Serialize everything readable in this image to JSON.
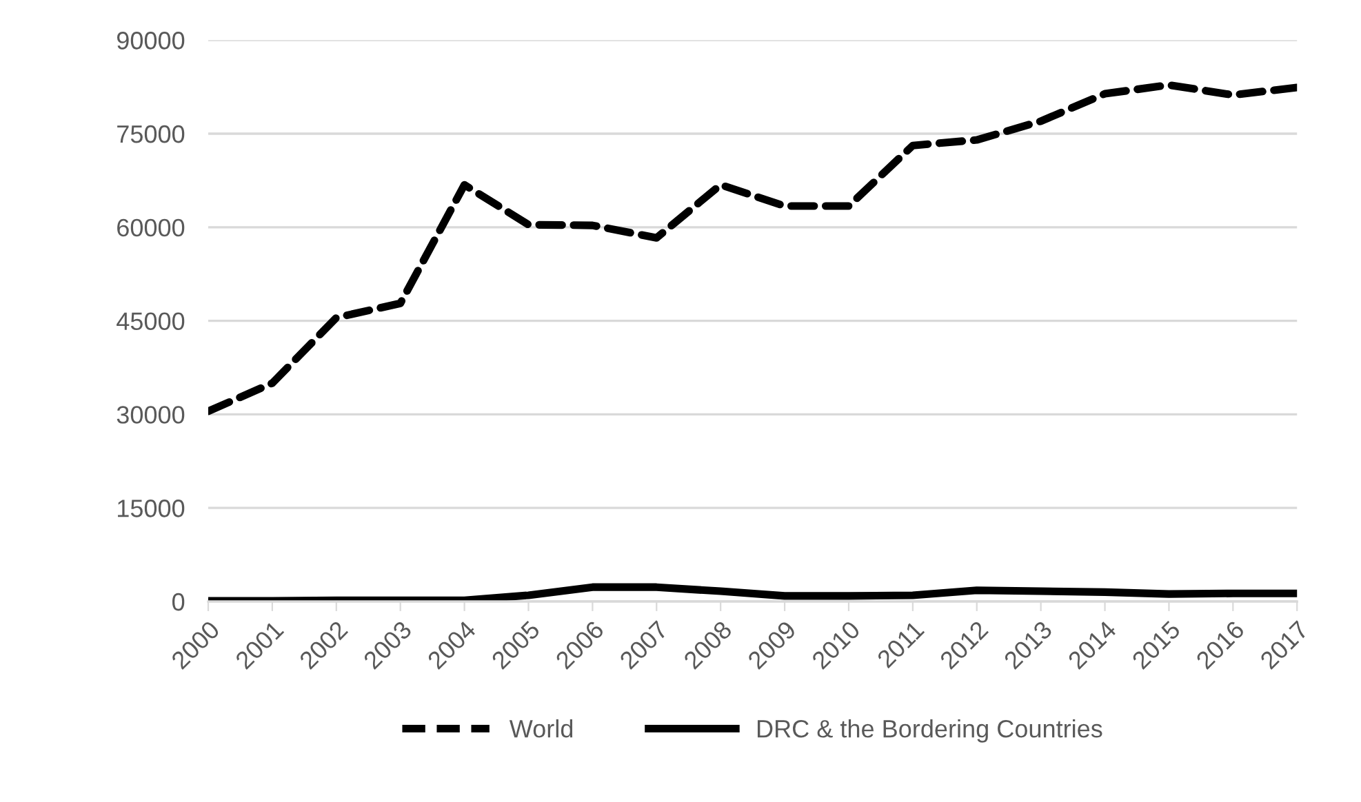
{
  "chart_data": {
    "type": "line",
    "categories": [
      "2000",
      "2001",
      "2002",
      "2003",
      "2004",
      "2005",
      "2006",
      "2007",
      "2008",
      "2009",
      "2010",
      "2011",
      "2012",
      "2013",
      "2014",
      "2015",
      "2016",
      "2017"
    ],
    "series": [
      {
        "name": "World",
        "color": "#000000",
        "line_style": "dashed",
        "values": [
          30500,
          35000,
          45500,
          47800,
          66800,
          60400,
          60300,
          58300,
          66800,
          63400,
          63400,
          73100,
          74000,
          77000,
          81400,
          82800,
          81200,
          82400
        ]
      },
      {
        "name": "DRC & the Bordering Countries",
        "color": "#000000",
        "line_style": "solid",
        "values": [
          100,
          100,
          200,
          200,
          200,
          1000,
          2300,
          2300,
          1650,
          900,
          900,
          1000,
          1800,
          1650,
          1500,
          1200,
          1300,
          1300
        ]
      }
    ],
    "ylim": [
      0,
      90000
    ],
    "yticks": [
      0,
      15000,
      30000,
      45000,
      60000,
      75000,
      90000
    ],
    "grid": "y",
    "legend": "bottom"
  }
}
